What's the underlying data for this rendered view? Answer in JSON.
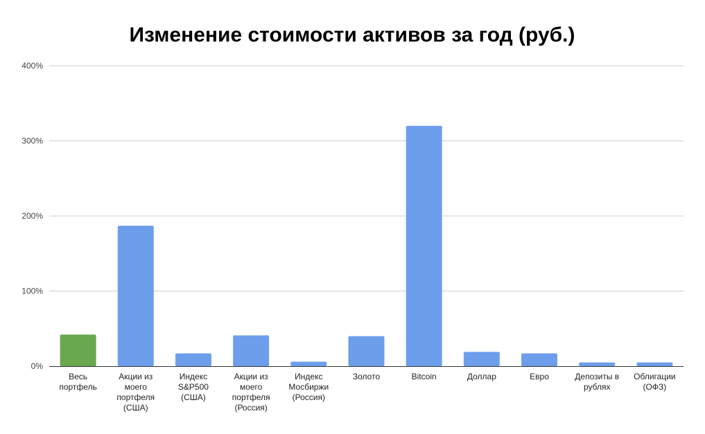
{
  "chart_data": {
    "type": "bar",
    "title": "Изменение стоимости активов за год (руб.)",
    "xlabel": "",
    "ylabel": "",
    "ylim": [
      0,
      400
    ],
    "yticks": [
      0,
      100,
      200,
      300,
      400
    ],
    "ytick_labels": [
      "0%",
      "100%",
      "200%",
      "300%",
      "400%"
    ],
    "grid": true,
    "legend": "none",
    "categories": [
      "Весь портфель",
      "Акции из моего портфеля (США)",
      "Индекс S&P500 (США)",
      "Акции из моего портфеля (Россия)",
      "Индекс Мосбиржи (Россия)",
      "Золото",
      "Bitcoin",
      "Доллар",
      "Евро",
      "Депозиты в рублях",
      "Облигации (ОФЗ)"
    ],
    "category_lines": [
      [
        "Весь",
        "портфель"
      ],
      [
        "Акции из",
        "моего",
        "портфеля",
        "(США)"
      ],
      [
        "Индекс",
        "S&P500",
        "(США)"
      ],
      [
        "Акции из",
        "моего",
        "портфеля",
        "(Россия)"
      ],
      [
        "Индекс",
        "Мосбиржи",
        "(Россия)"
      ],
      [
        "Золото"
      ],
      [
        "Bitcoin"
      ],
      [
        "Доллар"
      ],
      [
        "Евро"
      ],
      [
        "Депозиты в",
        "рублях"
      ],
      [
        "Облигации",
        "(ОФЗ)"
      ]
    ],
    "values": [
      42,
      187,
      17,
      41,
      6,
      40,
      320,
      19,
      17,
      5,
      5
    ],
    "colors": [
      "#6aa84f",
      "#6d9eeb",
      "#6d9eeb",
      "#6d9eeb",
      "#6d9eeb",
      "#6d9eeb",
      "#6d9eeb",
      "#6d9eeb",
      "#6d9eeb",
      "#6d9eeb",
      "#6d9eeb"
    ],
    "grid_color": "#cccccc",
    "axis_color": "#333333"
  }
}
